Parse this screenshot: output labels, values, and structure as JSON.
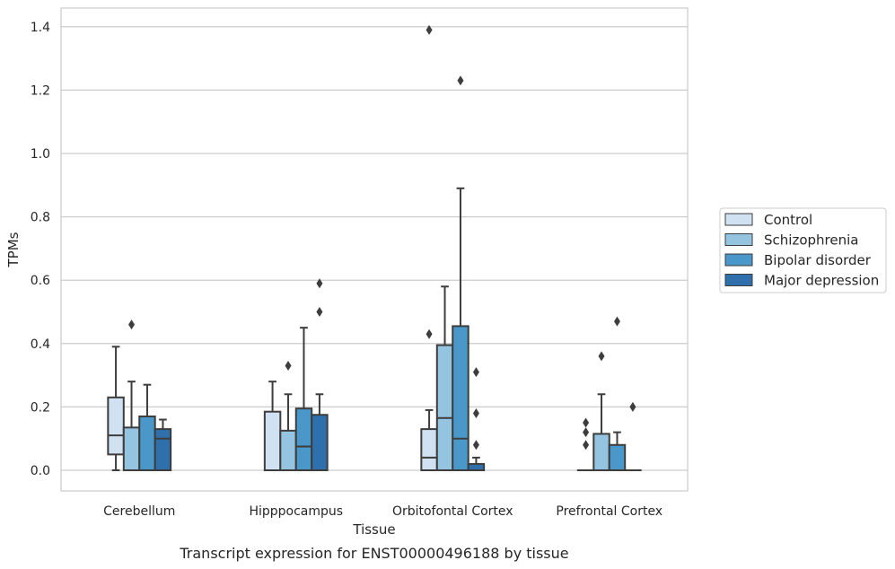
{
  "caption": "Transcript expression for ENST00000496188 by tissue",
  "chart_data": {
    "type": "boxplot",
    "title": "",
    "xlabel": "Tissue",
    "ylabel": "TPMs",
    "categories": [
      "Cerebellum",
      "Hipppocampus",
      "Orbitofontal Cortex",
      "Prefrontal Cortex"
    ],
    "ylim": [
      -0.07,
      1.46
    ],
    "yticks": [
      "0.0",
      "0.2",
      "0.4",
      "0.6",
      "0.8",
      "1.0",
      "1.2",
      "1.4"
    ],
    "grid": "horizontal",
    "legend_position": "right",
    "series": [
      {
        "name": "Control",
        "color": "#d0e1f2",
        "boxes": [
          {
            "whislo": 0.0,
            "q1": 0.05,
            "med": 0.11,
            "q3": 0.23,
            "whishi": 0.39,
            "fliers": []
          },
          {
            "whislo": 0.0,
            "q1": 0.0,
            "med": 0.0,
            "q3": 0.185,
            "whishi": 0.28,
            "fliers": []
          },
          {
            "whislo": 0.0,
            "q1": 0.0,
            "med": 0.04,
            "q3": 0.13,
            "whishi": 0.19,
            "fliers": [
              0.43,
              1.39
            ]
          },
          {
            "whislo": 0.0,
            "q1": 0.0,
            "med": 0.0,
            "q3": 0.0,
            "whishi": 0.0,
            "fliers": [
              0.08,
              0.12,
              0.15
            ]
          }
        ]
      },
      {
        "name": "Schizophrenia",
        "color": "#94c4df",
        "boxes": [
          {
            "whislo": 0.0,
            "q1": 0.0,
            "med": 0.0,
            "q3": 0.135,
            "whishi": 0.28,
            "fliers": [
              0.46
            ]
          },
          {
            "whislo": 0.0,
            "q1": 0.0,
            "med": 0.0,
            "q3": 0.125,
            "whishi": 0.24,
            "fliers": [
              0.33
            ]
          },
          {
            "whislo": 0.0,
            "q1": 0.0,
            "med": 0.165,
            "q3": 0.395,
            "whishi": 0.58,
            "fliers": []
          },
          {
            "whislo": 0.0,
            "q1": 0.0,
            "med": 0.0,
            "q3": 0.115,
            "whishi": 0.24,
            "fliers": [
              0.36
            ]
          }
        ]
      },
      {
        "name": "Bipolar disorder",
        "color": "#4a98c9",
        "boxes": [
          {
            "whislo": 0.0,
            "q1": 0.0,
            "med": 0.0,
            "q3": 0.17,
            "whishi": 0.27,
            "fliers": []
          },
          {
            "whislo": 0.0,
            "q1": 0.0,
            "med": 0.075,
            "q3": 0.195,
            "whishi": 0.45,
            "fliers": []
          },
          {
            "whislo": 0.0,
            "q1": 0.0,
            "med": 0.1,
            "q3": 0.455,
            "whishi": 0.89,
            "fliers": [
              1.23
            ]
          },
          {
            "whislo": 0.0,
            "q1": 0.0,
            "med": 0.0,
            "q3": 0.08,
            "whishi": 0.12,
            "fliers": [
              0.47
            ]
          }
        ]
      },
      {
        "name": "Major depression",
        "color": "#2e6fac",
        "boxes": [
          {
            "whislo": 0.0,
            "q1": 0.0,
            "med": 0.1,
            "q3": 0.13,
            "whishi": 0.16,
            "fliers": []
          },
          {
            "whislo": 0.0,
            "q1": 0.0,
            "med": 0.0,
            "q3": 0.175,
            "whishi": 0.24,
            "fliers": [
              0.5,
              0.59
            ]
          },
          {
            "whislo": 0.0,
            "q1": 0.0,
            "med": 0.0,
            "q3": 0.02,
            "whishi": 0.04,
            "fliers": [
              0.08,
              0.18,
              0.31
            ]
          },
          {
            "whislo": 0.0,
            "q1": 0.0,
            "med": 0.0,
            "q3": 0.0,
            "whishi": 0.0,
            "fliers": [
              0.2
            ]
          }
        ]
      }
    ]
  }
}
